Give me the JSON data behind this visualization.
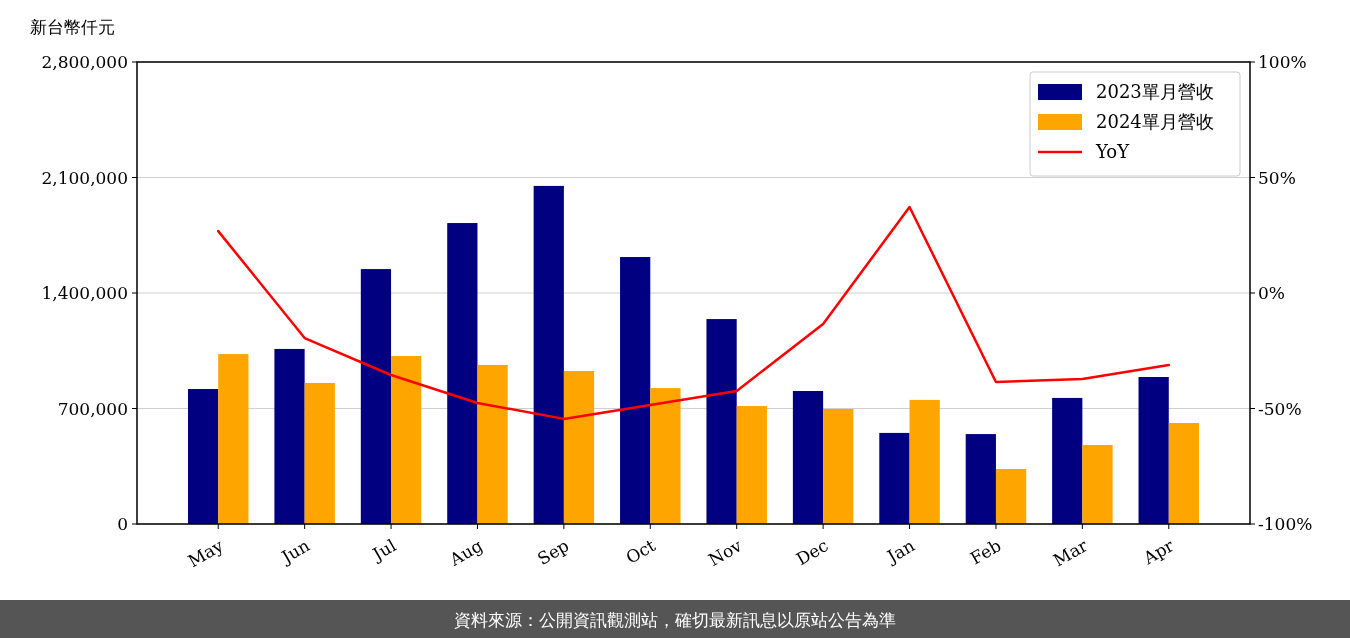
{
  "chart_data": {
    "type": "bar",
    "ylabel": "新台幣仟元",
    "categories": [
      "May",
      "Jun",
      "Jul",
      "Aug",
      "Sep",
      "Oct",
      "Nov",
      "Dec",
      "Jan",
      "Feb",
      "Mar",
      "Apr"
    ],
    "series": [
      {
        "name": "2023單月營收",
        "color": "#000080",
        "values": [
          818000,
          1061000,
          1545000,
          1824000,
          2049000,
          1618000,
          1242000,
          806000,
          552000,
          545000,
          764000,
          891000
        ]
      },
      {
        "name": "2024單月營收",
        "color": "#ffa500",
        "values": [
          1030000,
          855000,
          1018000,
          964000,
          927000,
          824000,
          715000,
          697000,
          752000,
          333000,
          479000,
          612000
        ]
      },
      {
        "name": "YoY",
        "type": "line",
        "axis": "y2",
        "color": "#ff0000",
        "values": [
          26.8,
          -19.5,
          -35.5,
          -47.6,
          -54.5,
          -48.5,
          -42.4,
          -13.4,
          37.2,
          -38.5,
          -37.2,
          -31.2
        ]
      }
    ],
    "ylim": [
      0,
      2800000
    ],
    "yticks": [
      {
        "value": 0,
        "label": "0"
      },
      {
        "value": 700000,
        "label": "700,000"
      },
      {
        "value": 1400000,
        "label": "1,400,000"
      },
      {
        "value": 2100000,
        "label": "2,100,000"
      },
      {
        "value": 2800000,
        "label": "2,800,000"
      }
    ],
    "y2lim": [
      -100,
      100
    ],
    "y2ticks": [
      {
        "value": -100,
        "label": "-100%"
      },
      {
        "value": -50,
        "label": "-50%"
      },
      {
        "value": 0,
        "label": "0%"
      },
      {
        "value": 50,
        "label": "50%"
      },
      {
        "value": 100,
        "label": "100%"
      }
    ],
    "grid": "y",
    "legend": "top right",
    "annotations": [
      "資料來源：公開資訊觀測站，確切最新訊息以原站公告為準"
    ]
  }
}
